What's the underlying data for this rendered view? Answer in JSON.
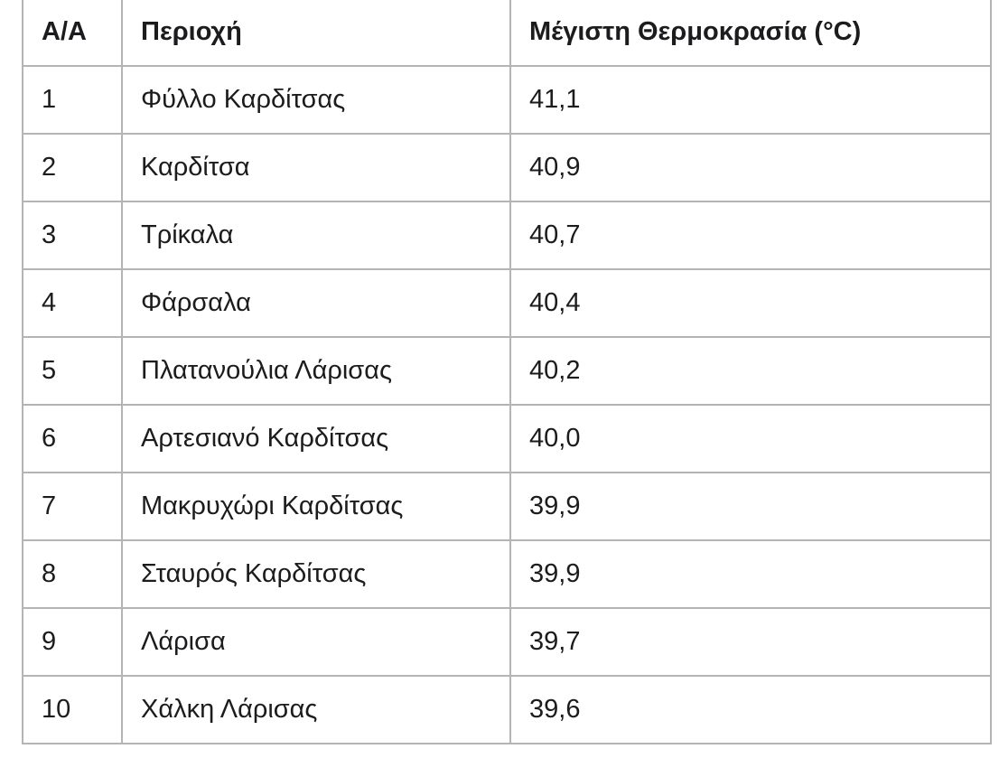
{
  "colors": {
    "border": "#b4b4b4",
    "text": "#1c1c1e",
    "background": "#ffffff"
  },
  "chart_data": {
    "type": "table",
    "columns": [
      "Α/Α",
      "Περιοχή",
      "Μέγιστη Θερμοκρασία (°C)"
    ],
    "rows": [
      [
        "1",
        "Φύλλο Καρδίτσας",
        "41,1"
      ],
      [
        "2",
        "Καρδίτσα",
        "40,9"
      ],
      [
        "3",
        "Τρίκαλα",
        "40,7"
      ],
      [
        "4",
        "Φάρσαλα",
        "40,4"
      ],
      [
        "5",
        "Πλατανούλια Λάρισας",
        "40,2"
      ],
      [
        "6",
        "Αρτεσιανό Καρδίτσας",
        "40,0"
      ],
      [
        "7",
        "Μακρυχώρι Καρδίτσας",
        "39,9"
      ],
      [
        "8",
        "Σταυρός Καρδίτσας",
        "39,9"
      ],
      [
        "9",
        "Λάρισα",
        "39,7"
      ],
      [
        "10",
        "Χάλκη Λάρισας",
        "39,6"
      ]
    ],
    "values_celsius": [
      41.1,
      40.9,
      40.7,
      40.4,
      40.2,
      40.0,
      39.9,
      39.9,
      39.7,
      39.6
    ]
  }
}
